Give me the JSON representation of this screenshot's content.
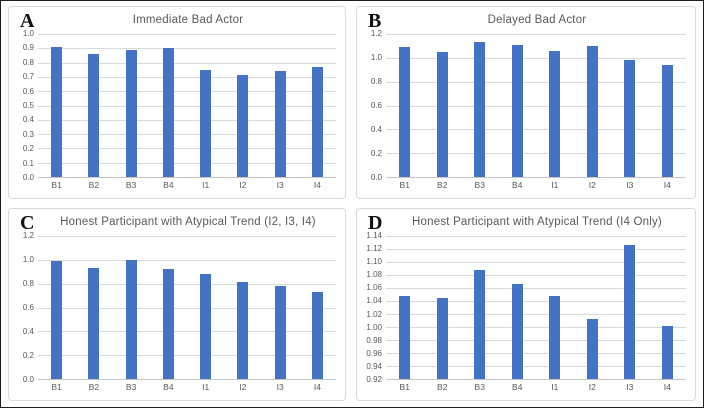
{
  "styles": {
    "bar_color": "#4472C4",
    "gridline_color": "#D9D9D9",
    "axis_text_color": "#595959",
    "title_color": "#595959",
    "panel_border_color": "#D9D9D9"
  },
  "categories": [
    "B1",
    "B2",
    "B3",
    "B4",
    "I1",
    "I2",
    "I3",
    "I4"
  ],
  "chart_data": [
    {
      "type": "bar",
      "panel_letter": "A",
      "title": "Immediate Bad Actor",
      "categories": [
        "B1",
        "B2",
        "B3",
        "B4",
        "I1",
        "I2",
        "I3",
        "I4"
      ],
      "values": [
        0.91,
        0.86,
        0.89,
        0.9,
        0.75,
        0.71,
        0.74,
        0.77
      ],
      "xlabel": "",
      "ylabel": "",
      "ylim": [
        0.0,
        1.0
      ],
      "ytick_step": 0.1,
      "ytick_decimals": 1,
      "grid": true,
      "legend": false
    },
    {
      "type": "bar",
      "panel_letter": "B",
      "title": "Delayed Bad Actor",
      "categories": [
        "B1",
        "B2",
        "B3",
        "B4",
        "I1",
        "I2",
        "I3",
        "I4"
      ],
      "values": [
        1.09,
        1.05,
        1.13,
        1.11,
        1.06,
        1.1,
        0.98,
        0.94
      ],
      "xlabel": "",
      "ylabel": "",
      "ylim": [
        0.0,
        1.2
      ],
      "ytick_step": 0.2,
      "ytick_decimals": 1,
      "grid": true,
      "legend": false
    },
    {
      "type": "bar",
      "panel_letter": "C",
      "title": "Honest Participant with Atypical Trend (I2, I3, I4)",
      "categories": [
        "B1",
        "B2",
        "B3",
        "B4",
        "I1",
        "I2",
        "I3",
        "I4"
      ],
      "values": [
        0.99,
        0.93,
        1.0,
        0.92,
        0.88,
        0.81,
        0.78,
        0.73
      ],
      "xlabel": "",
      "ylabel": "",
      "ylim": [
        0.0,
        1.2
      ],
      "ytick_step": 0.2,
      "ytick_decimals": 1,
      "grid": true,
      "legend": false
    },
    {
      "type": "bar",
      "panel_letter": "D",
      "title": "Honest Participant with Atypical Trend (I4 Only)",
      "categories": [
        "B1",
        "B2",
        "B3",
        "B4",
        "I1",
        "I2",
        "I3",
        "I4"
      ],
      "values": [
        1.048,
        1.044,
        1.088,
        1.066,
        1.048,
        1.013,
        1.126,
        1.002
      ],
      "xlabel": "",
      "ylabel": "",
      "ylim": [
        0.92,
        1.14
      ],
      "ytick_step": 0.02,
      "ytick_decimals": 2,
      "grid": true,
      "legend": false
    }
  ]
}
